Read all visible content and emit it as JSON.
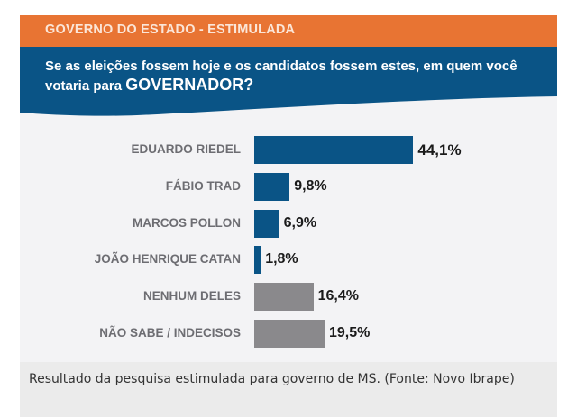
{
  "header": {
    "band_title": "GOVERNO DO ESTADO - ESTIMULADA",
    "question_part1": "Se as eleições fossem hoje e os candidatos fossem estes, em quem você votaria para ",
    "question_emphasis": "GOVERNADOR?"
  },
  "colors": {
    "orange_band": "#e87433",
    "blue_band": "#0a5486",
    "candidate_bar": "#0a5486",
    "other_bar": "#8a898c",
    "background": "#f3f3f5"
  },
  "chart_data": {
    "type": "bar",
    "orientation": "horizontal",
    "title": "GOVERNO DO ESTADO - ESTIMULADA",
    "subtitle": "Se as eleições fossem hoje e os candidatos fossem estes, em quem você votaria para GOVERNADOR?",
    "categories": [
      "EDUARDO RIEDEL",
      "FÁBIO TRAD",
      "MARCOS POLLON",
      "JOÃO HENRIQUE CATAN",
      "NENHUM  DELES",
      "NÃO SABE / INDECISOS"
    ],
    "values": [
      44.1,
      9.8,
      6.9,
      1.8,
      16.4,
      19.5
    ],
    "value_labels": [
      "44,1%",
      "9,8%",
      "6,9%",
      "1,8%",
      "16,4%",
      "19,5%"
    ],
    "bar_kind": [
      "candidate",
      "candidate",
      "candidate",
      "candidate",
      "other",
      "other"
    ],
    "xlabel": "",
    "ylabel": "",
    "xlim": [
      0,
      50
    ],
    "grid": false,
    "legend": "none"
  },
  "caption": "Resultado da pesquisa estimulada para governo de MS. (Fonte: Novo Ibrape)"
}
